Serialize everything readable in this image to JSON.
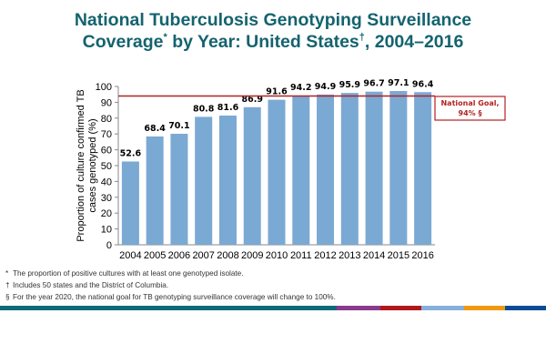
{
  "title": {
    "line1": "National Tuberculosis Genotyping Surveillance",
    "line2_a": "Coverage",
    "line2_mark1": "*",
    "line2_b": " by Year: United States",
    "line2_mark2": "†",
    "line2_c": ", 2004–2016"
  },
  "chart_data": {
    "type": "bar",
    "categories": [
      "2004",
      "2005",
      "2006",
      "2007",
      "2008",
      "2009",
      "2010",
      "2011",
      "2012",
      "2013",
      "2014",
      "2015",
      "2016"
    ],
    "values": [
      52.6,
      68.4,
      70.1,
      80.8,
      81.6,
      86.9,
      91.6,
      94.2,
      94.9,
      95.9,
      96.7,
      97.1,
      96.4
    ],
    "ylabel": "Proportion of culture confirmed TB cases genotyped (%)",
    "ylim": [
      0,
      100
    ],
    "yticks": [
      0,
      10,
      20,
      30,
      40,
      50,
      60,
      70,
      80,
      90,
      100
    ],
    "grid": false,
    "bar_color": "#7aa9d4",
    "reference_line": {
      "value": 94,
      "label_line1": "National Goal,",
      "label_line2": "94% §",
      "color": "#b22222"
    }
  },
  "footnotes": [
    {
      "mark": "*",
      "text": "The proportion of positive cultures with at least one genotyped isolate."
    },
    {
      "mark": "†",
      "text": "Includes 50 states and the District of Columbia."
    },
    {
      "mark": "§",
      "text": "For the year 2020,  the national goal for TB genotyping surveillance coverage will change to 100%."
    }
  ],
  "stripe_colors": [
    "#0e6a78",
    "#8a3a8c",
    "#b0191c",
    "#86b0d8",
    "#ef9a12",
    "#0a4b96"
  ]
}
